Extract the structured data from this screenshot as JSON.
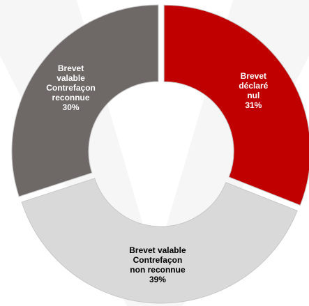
{
  "chart_data": {
    "type": "pie",
    "variant": "donut",
    "legend": "none",
    "grid": false,
    "slices": [
      {
        "category": "Brevet déclaré nul",
        "lines": [
          "Brevet",
          "déclaré",
          "nul",
          "31%"
        ],
        "value": 31,
        "color": "#c00000",
        "label_color": "#ffffff"
      },
      {
        "category": "Brevet valable Contrefaçon non reconnue",
        "lines": [
          "Brevet valable",
          "Contrefaçon",
          "non reconnue",
          "39%"
        ],
        "value": 39,
        "color": "#d9d9d9",
        "label_color": "#000000"
      },
      {
        "category": "Brevet valable Contrefaçon reconnue",
        "lines": [
          "Brevet",
          "valable",
          "Contrefaçon",
          "reconnue",
          "30%"
        ],
        "value": 30,
        "color": "#6e6867",
        "label_color": "#ffffff"
      }
    ]
  }
}
